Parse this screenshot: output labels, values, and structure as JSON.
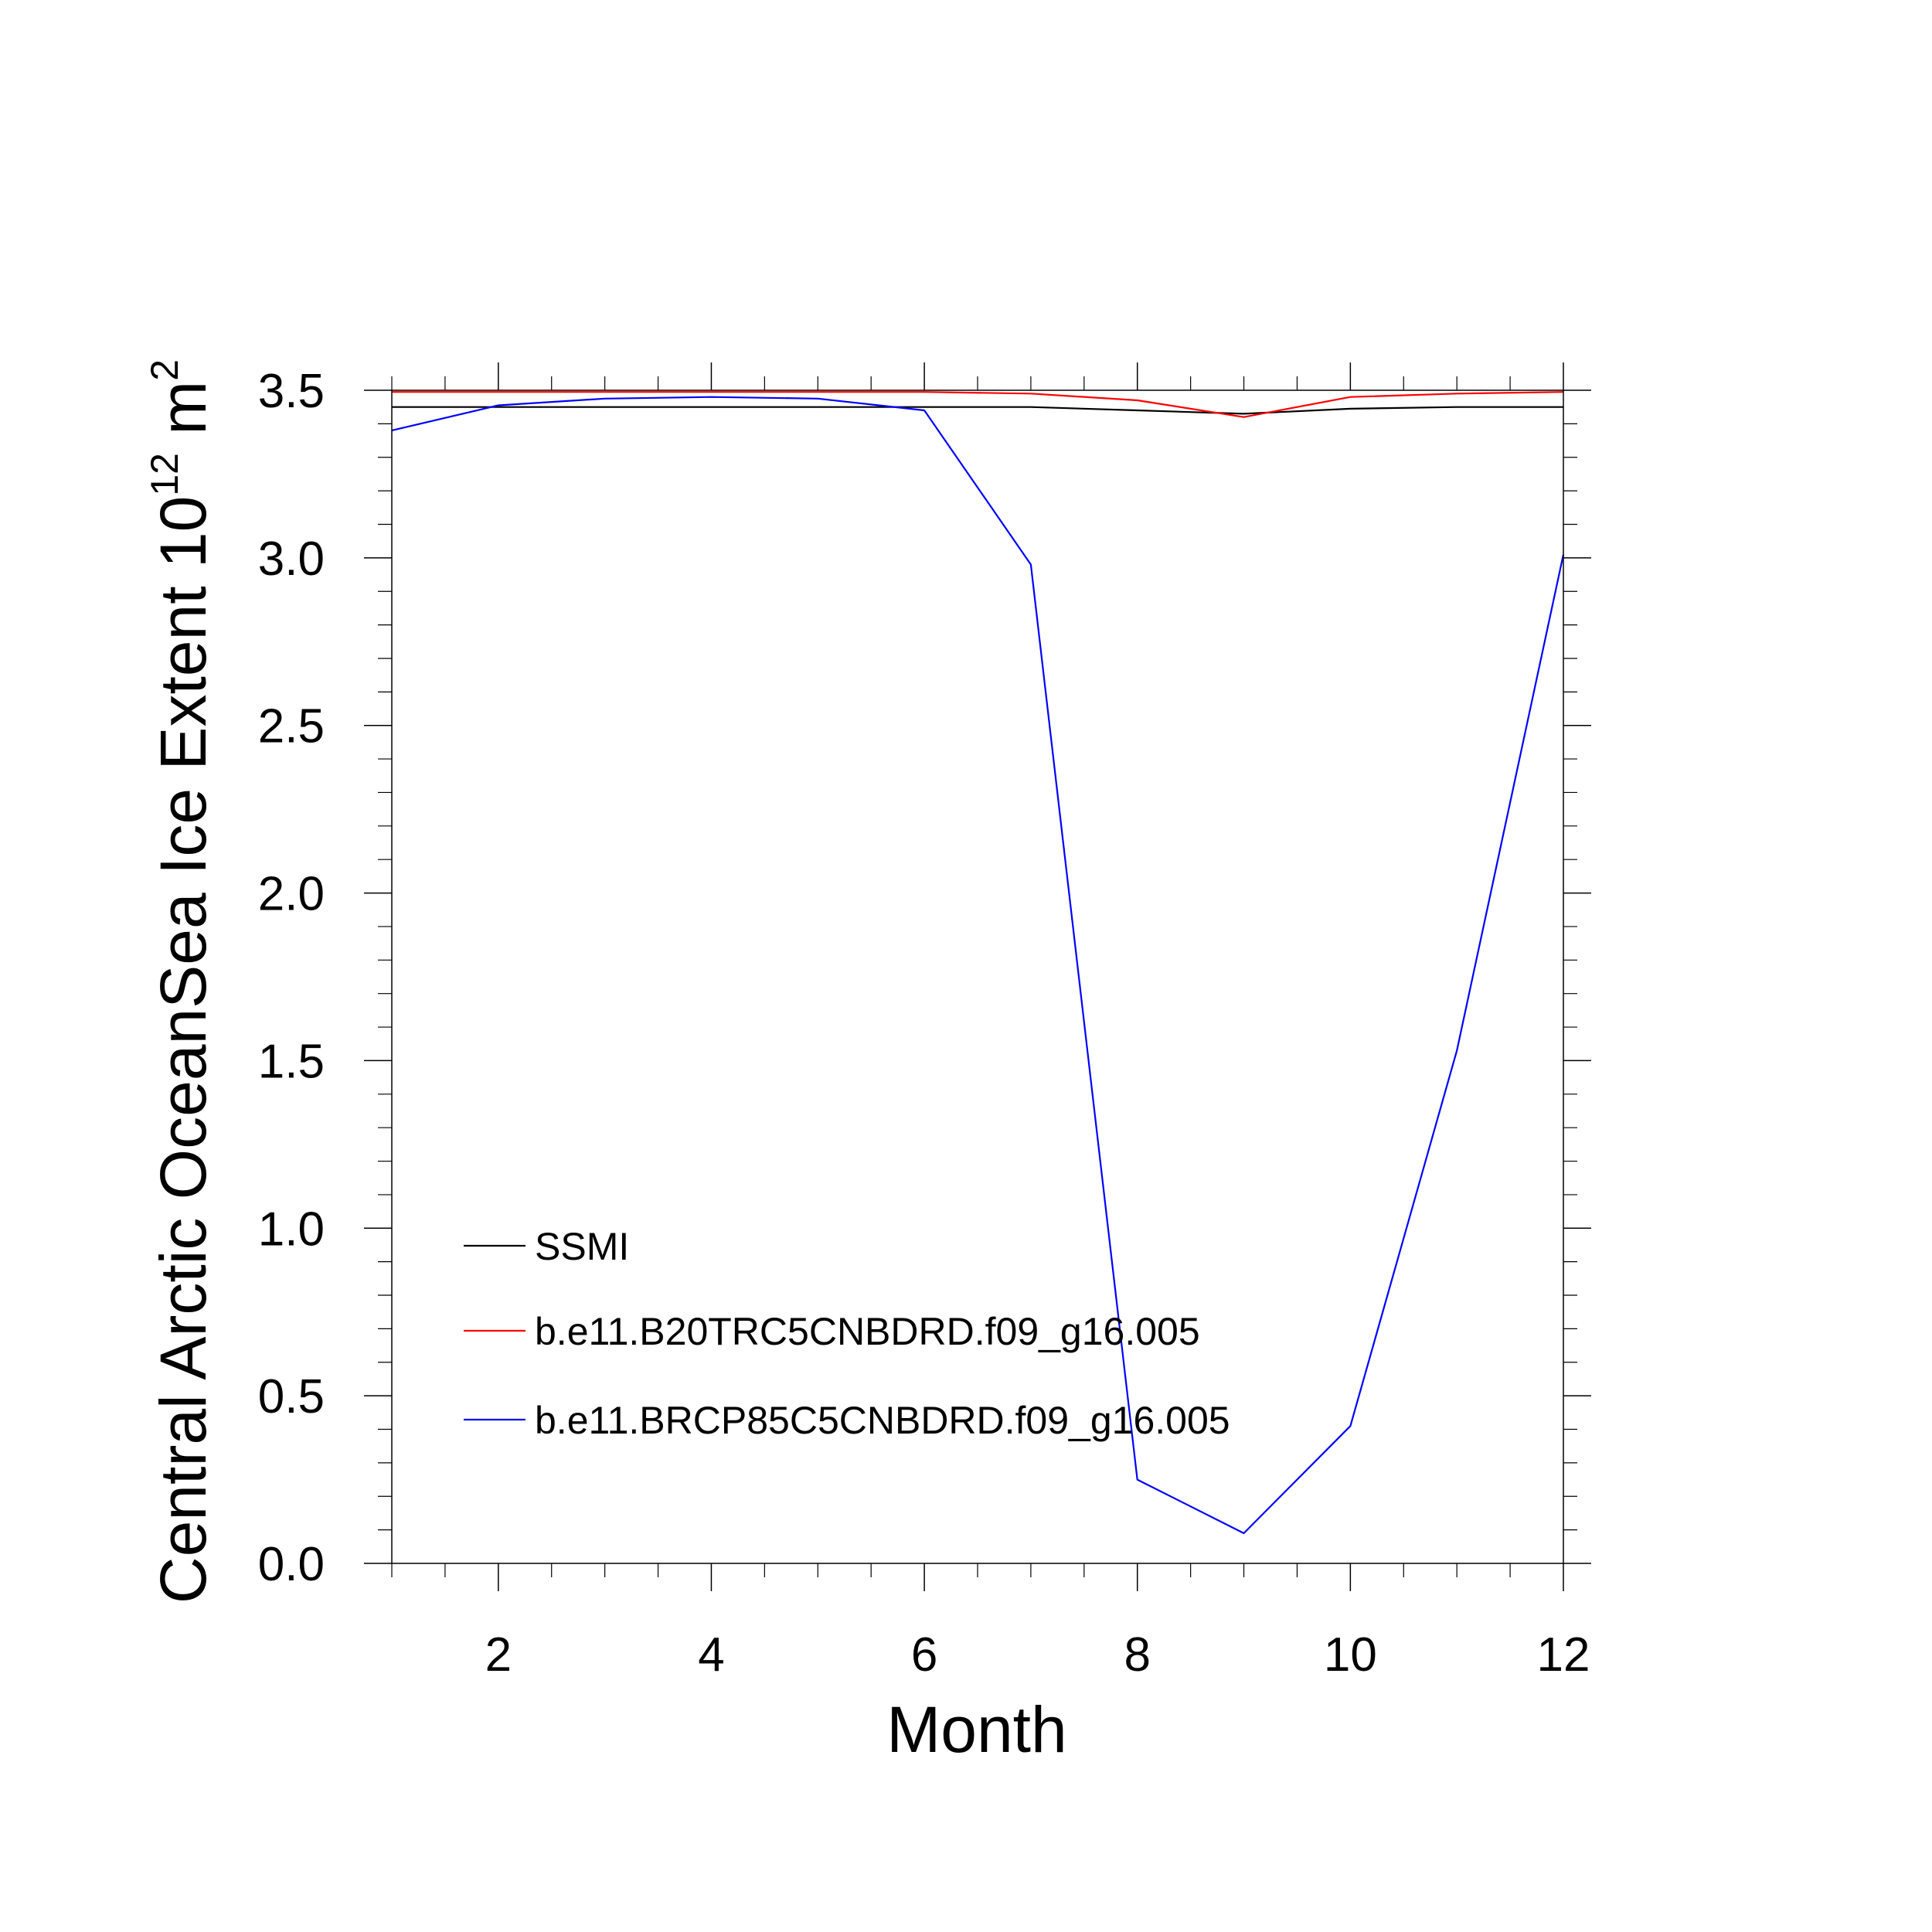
{
  "chart_data": {
    "type": "line",
    "xlabel": "Month",
    "ylabel": {
      "prefix": "Central Arctic OceanSea Ice Extent 10",
      "exponent": "12",
      "unit": " m",
      "unit_exponent": "2"
    },
    "xlim": [
      1,
      12
    ],
    "ylim": [
      0.0,
      3.5
    ],
    "x_major_ticks": [
      2,
      4,
      6,
      8,
      10,
      12
    ],
    "x_tick_labels": [
      "2",
      "4",
      "6",
      "8",
      "10",
      "12"
    ],
    "y_major_ticks": [
      0.0,
      0.5,
      1.0,
      1.5,
      2.0,
      2.5,
      3.0,
      3.5
    ],
    "y_tick_labels": [
      "0.0",
      "0.5",
      "1.0",
      "1.5",
      "2.0",
      "2.5",
      "3.0",
      "3.5"
    ],
    "legend_position": "bottom-left",
    "x": [
      1,
      2,
      3,
      4,
      5,
      6,
      7,
      8,
      9,
      10,
      11,
      12
    ],
    "series": [
      {
        "name": "SSMI",
        "color": "#000000",
        "values": [
          3.45,
          3.45,
          3.45,
          3.45,
          3.45,
          3.45,
          3.45,
          3.44,
          3.43,
          3.445,
          3.45,
          3.45
        ]
      },
      {
        "name": "b.e11.B20TRC5CNBDRD.f09_g16.005",
        "color": "#ff0000",
        "values": [
          3.495,
          3.495,
          3.495,
          3.495,
          3.495,
          3.495,
          3.49,
          3.47,
          3.42,
          3.48,
          3.49,
          3.495
        ]
      },
      {
        "name": "b.e11.BRCP85C5CNBDRD.f09_g16.005",
        "color": "#0000ff",
        "values": [
          3.38,
          3.455,
          3.475,
          3.48,
          3.475,
          3.44,
          2.98,
          0.25,
          0.09,
          0.41,
          1.53,
          3.01
        ]
      }
    ]
  }
}
